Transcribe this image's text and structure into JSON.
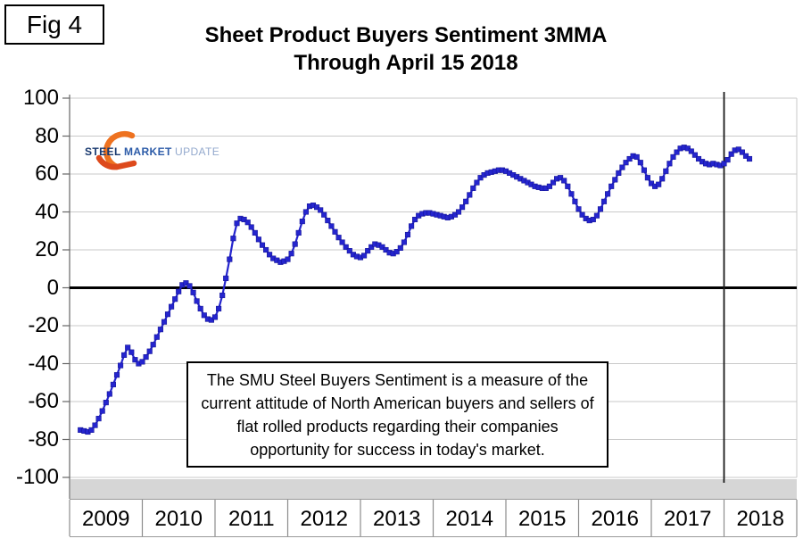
{
  "figure": {
    "label": "Fig 4"
  },
  "title": {
    "line1": "Sheet Product Buyers Sentiment 3MMA",
    "line2": "Through April 15 2018"
  },
  "logo": {
    "word1": "STEEL",
    "word2": "MARKET",
    "word3": "UPDATE",
    "arc_color": "#EE7220",
    "arc_color_bottom": "#DD4A1C",
    "word1_color": "#17386E",
    "word2_color": "#2C5BA8",
    "word3_color": "#93A9CD"
  },
  "note_box": {
    "lines": [
      "The SMU Steel Buyers Sentiment is a measure of the",
      "current attitude of North American buyers and sellers of",
      "flat rolled products regarding their companies",
      "opportunity for success in today's market."
    ]
  },
  "chart_data": {
    "type": "line",
    "title": "Sheet Product Buyers Sentiment 3MMA Through April 15 2018",
    "xlabel": "",
    "ylabel": "",
    "ylim": [
      -100,
      100
    ],
    "y_ticks": [
      100,
      80,
      60,
      40,
      20,
      0,
      -20,
      -40,
      -60,
      -80,
      -100
    ],
    "x_year_labels": [
      "2009",
      "2010",
      "2011",
      "2012",
      "2013",
      "2014",
      "2015",
      "2016",
      "2017",
      "2018"
    ],
    "grid": "horizontal",
    "zero_line": true,
    "legend": "none",
    "line_color": "#2525CE",
    "marker": "square",
    "annotations": {
      "vertical_line_at_year": 2018.0
    },
    "x_start": 2009.15,
    "x_step": 0.05,
    "series": [
      {
        "name": "SMU Sheet Product Buyers Sentiment 3MMA",
        "values": [
          -75,
          -75.5,
          -76,
          -75,
          -72.5,
          -69,
          -65,
          -60.5,
          -56,
          -51,
          -46,
          -41,
          -35.5,
          -31.5,
          -34,
          -38,
          -40,
          -39,
          -36.5,
          -33.5,
          -30,
          -26,
          -22,
          -18,
          -14,
          -10,
          -6,
          -2,
          1.5,
          2.5,
          1,
          -2.5,
          -7,
          -11,
          -14.5,
          -16.5,
          -17,
          -15.5,
          -11,
          -4,
          5,
          15,
          26,
          34,
          36.5,
          36,
          34.5,
          32,
          29,
          25.5,
          22.5,
          20,
          17.5,
          15.5,
          14.5,
          13.5,
          14,
          15,
          18,
          23,
          29,
          35,
          40,
          43,
          43.5,
          42.5,
          41,
          38.5,
          35.5,
          32.5,
          29.5,
          26.5,
          24,
          21.5,
          19.5,
          17.5,
          16.5,
          16,
          17,
          19.5,
          21.5,
          23,
          22.5,
          21.5,
          20,
          18.5,
          18,
          19,
          21,
          24,
          28,
          32.5,
          36,
          38,
          39,
          39.5,
          39.5,
          39,
          38.5,
          38,
          37.5,
          37,
          37.5,
          38.5,
          40,
          42.5,
          45.5,
          49,
          52.5,
          55.5,
          58,
          59.5,
          60.5,
          61,
          61.5,
          62,
          62,
          61.5,
          60.5,
          59.5,
          58.5,
          57.5,
          56.5,
          55.5,
          54.5,
          53.5,
          53,
          52.5,
          52.5,
          53.5,
          55.5,
          57.5,
          58,
          56.5,
          53.5,
          49.5,
          45.5,
          41.5,
          38.5,
          36.5,
          35.5,
          36,
          38,
          41.5,
          45.5,
          49.5,
          53.5,
          57,
          60.5,
          63.5,
          66,
          68,
          69.5,
          69,
          66,
          62,
          58,
          55,
          53.5,
          54.5,
          57.5,
          61.5,
          65.5,
          69,
          71.5,
          73.5,
          74,
          73.5,
          72,
          70,
          68,
          66.5,
          65.5,
          65,
          65.5,
          65,
          64.5,
          65.5,
          67.5,
          70.5,
          72.5,
          73,
          71.5,
          69.5,
          68
        ]
      }
    ]
  }
}
